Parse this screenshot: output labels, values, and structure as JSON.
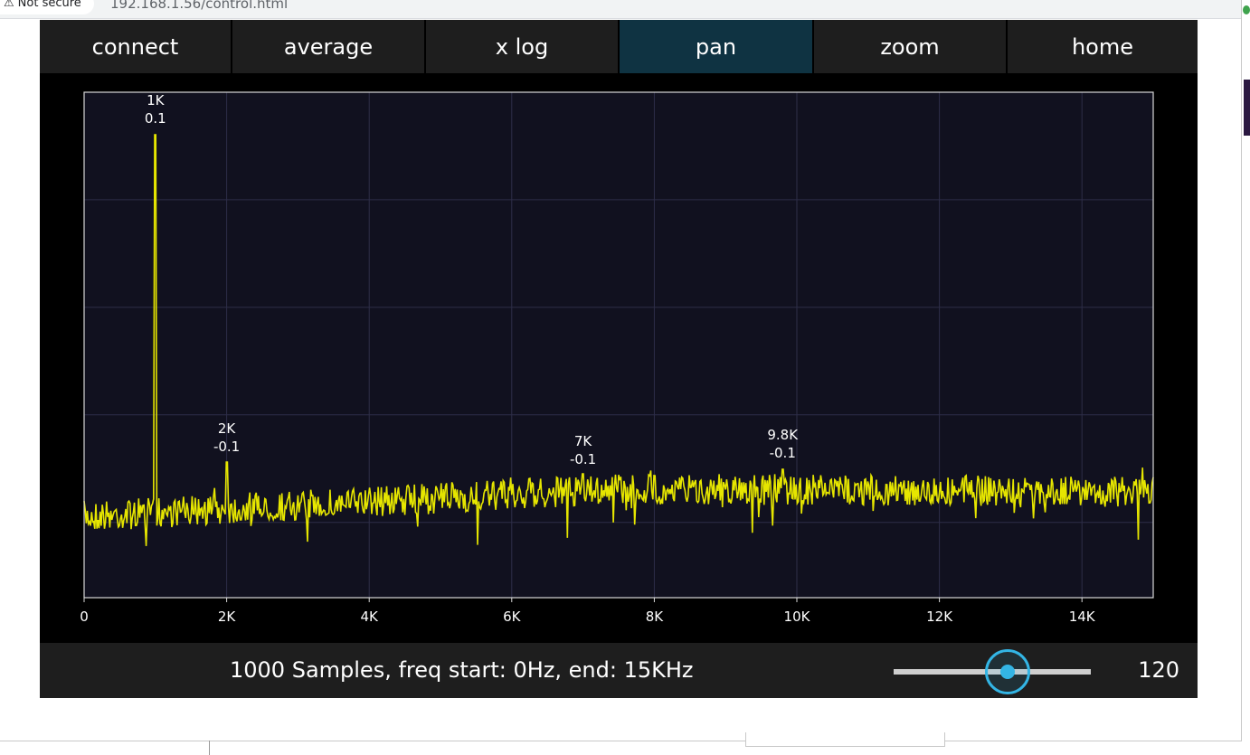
{
  "browser": {
    "security_label": "Not secure",
    "warning_icon": "warning-triangle-icon",
    "url": "192.168.1.56/control.html"
  },
  "toolbar": {
    "buttons": [
      {
        "label": "connect",
        "active": false
      },
      {
        "label": "average",
        "active": false
      },
      {
        "label": "x log",
        "active": false
      },
      {
        "label": "pan",
        "active": true
      },
      {
        "label": "zoom",
        "active": false
      },
      {
        "label": "home",
        "active": false
      }
    ]
  },
  "colors": {
    "plot_bg": "#11111f",
    "trace": "#e6e600",
    "active_button": "#0f3342",
    "button": "#1e1e1e",
    "slider_accent": "#33b5e5"
  },
  "chart_data": {
    "type": "line",
    "title": "",
    "xlabel": "",
    "ylabel": "",
    "xlim": [
      0,
      15000
    ],
    "x_ticks": [
      "0",
      "2K",
      "4K",
      "6K",
      "8K",
      "10K",
      "12K",
      "14K"
    ],
    "x_tick_values": [
      0,
      2000,
      4000,
      6000,
      8000,
      10000,
      12000,
      14000
    ],
    "y_tick_labels_visible": false,
    "grid": true,
    "peaks": [
      {
        "freq": 1000,
        "freq_label": "1K",
        "value_label": "0.1"
      },
      {
        "freq": 2000,
        "freq_label": "2K",
        "value_label": "-0.1"
      },
      {
        "freq": 7000,
        "freq_label": "7K",
        "value_label": "-0.1"
      },
      {
        "freq": 9800,
        "freq_label": "9.8K",
        "value_label": "-0.1"
      }
    ],
    "samples": 1000
  },
  "status": {
    "text": "1000 Samples, freq start: 0Hz, end: 15KHz",
    "slider_value": "120",
    "slider_fraction": 0.58
  }
}
